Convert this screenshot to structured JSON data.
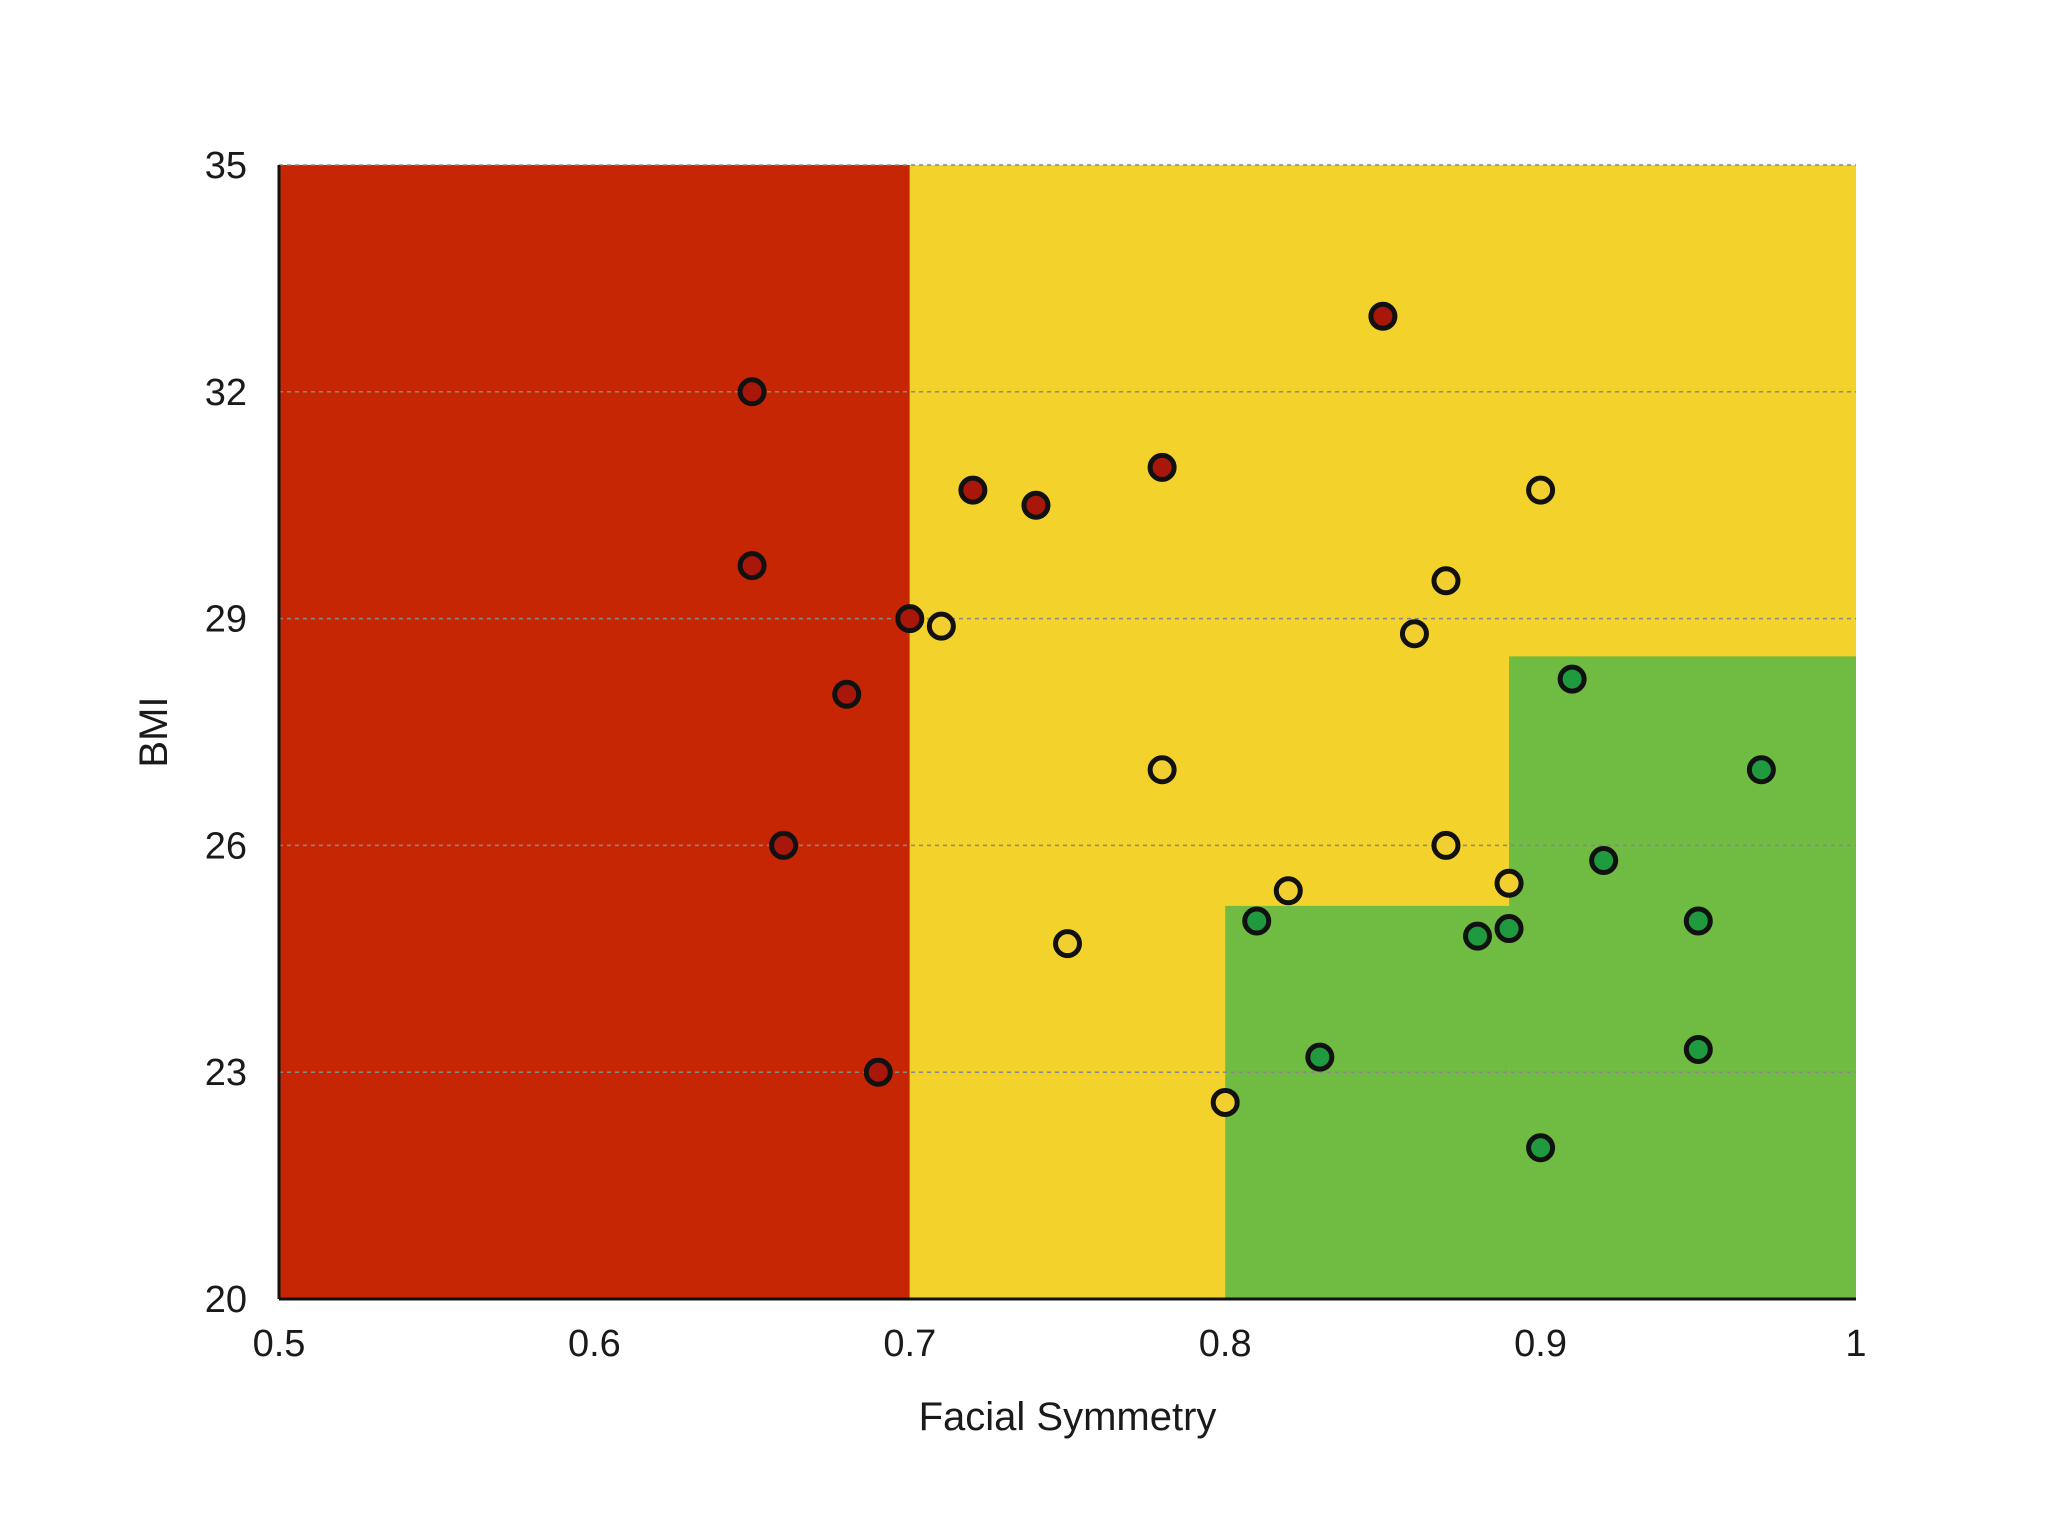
{
  "chart_data": {
    "type": "scatter",
    "title": "",
    "xlabel": "Facial Symmetry",
    "ylabel": "BMI",
    "xlim": [
      0.5,
      1.0
    ],
    "ylim": [
      20,
      35
    ],
    "xticks": [
      0.5,
      0.6,
      0.7,
      0.8,
      0.9,
      1.0
    ],
    "xtick_labels": [
      "0.5",
      "0.6",
      "0.7",
      "0.8",
      "0.9",
      "1"
    ],
    "yticks": [
      20,
      23,
      26,
      29,
      32,
      35
    ],
    "ytick_labels": [
      "20",
      "23",
      "26",
      "29",
      "32",
      "35"
    ],
    "grid": "horizontal dashed",
    "background_regions": [
      {
        "color": "#c72604",
        "x": [
          0.5,
          0.7
        ],
        "y": [
          20,
          35
        ]
      },
      {
        "color": "#f3d22b",
        "x": [
          0.7,
          1.0
        ],
        "y": [
          20,
          35
        ]
      },
      {
        "color": "#70bb42",
        "x": [
          0.8,
          0.89
        ],
        "y": [
          20,
          25.2
        ]
      },
      {
        "color": "#70bb42",
        "x": [
          0.89,
          1.0
        ],
        "y": [
          20,
          28.5
        ]
      }
    ],
    "series": [
      {
        "color": "#a8170a",
        "points": [
          [
            0.65,
            32.0
          ],
          [
            0.65,
            29.7
          ],
          [
            0.68,
            28.0
          ],
          [
            0.66,
            26.0
          ],
          [
            0.69,
            23.0
          ],
          [
            0.7,
            29.0
          ],
          [
            0.72,
            30.7
          ],
          [
            0.74,
            30.5
          ],
          [
            0.78,
            31.0
          ],
          [
            0.85,
            33.0
          ]
        ]
      },
      {
        "color": "#f2cf30",
        "points": [
          [
            0.71,
            28.9
          ],
          [
            0.78,
            27.0
          ],
          [
            0.75,
            24.7
          ],
          [
            0.8,
            22.6
          ],
          [
            0.82,
            25.4
          ],
          [
            0.86,
            28.8
          ],
          [
            0.87,
            29.5
          ],
          [
            0.9,
            30.7
          ],
          [
            0.87,
            26.0
          ],
          [
            0.89,
            25.5
          ]
        ]
      },
      {
        "color": "#1f9a3f",
        "points": [
          [
            0.81,
            25.0
          ],
          [
            0.83,
            23.2
          ],
          [
            0.88,
            24.8
          ],
          [
            0.89,
            24.9
          ],
          [
            0.9,
            22.0
          ],
          [
            0.91,
            28.2
          ],
          [
            0.92,
            25.8
          ],
          [
            0.95,
            25.0
          ],
          [
            0.95,
            23.3
          ],
          [
            0.97,
            27.0
          ]
        ]
      }
    ]
  }
}
